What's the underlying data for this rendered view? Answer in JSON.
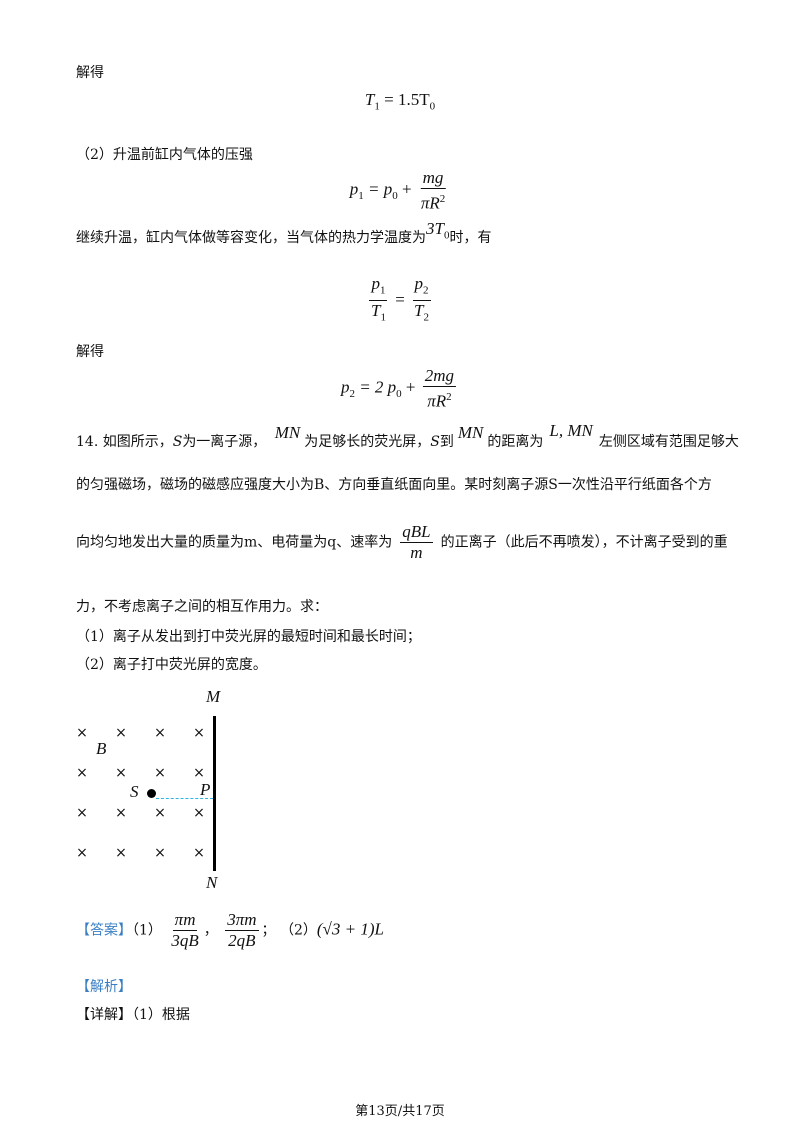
{
  "solve1": "解得",
  "eq_T1": {
    "lhs": "T",
    "lhs_sub": "1",
    "rhs": "= 1.5T",
    "rhs_sub": "0"
  },
  "part2_intro": "（2）升温前缸内气体的压强",
  "eq_p1": {
    "lhs": "p",
    "lhs_sub": "1",
    "mid": "= p",
    "mid_sub": "0",
    "plus": "+",
    "num": "mg",
    "den": "πR",
    "den_sup": "2"
  },
  "continue_text": {
    "before": "继续升温，缸内气体做等容变化，当气体的热力学温度为",
    "temp": "3T",
    "temp_sub": "0",
    "after": "时，有"
  },
  "eq_ratio": {
    "n1": "p",
    "n1_sub": "1",
    "d1": "T",
    "d1_sub": "1",
    "eq": "=",
    "n2": "p",
    "n2_sub": "2",
    "d2": "T",
    "d2_sub": "2"
  },
  "solve2": "解得",
  "eq_p2": {
    "lhs": "p",
    "lhs_sub": "2",
    "mid": "= 2 p",
    "mid_sub": "0",
    "plus": "+",
    "num": "2mg",
    "den": "πR",
    "den_sup": "2"
  },
  "question": {
    "line1": {
      "a": "14. 如图所示，",
      "S": "S",
      "b": "为一离子源，",
      "MN1": "MN",
      "c": "为足够长的荧光屏，",
      "S2": "S",
      "d": "到",
      "MN2": "MN",
      "e": "的距离为",
      "LMN": "L, MN",
      "f": "左侧区域有范围足够大"
    },
    "line2": "的匀强磁场，磁场的磁感应强度大小为B、方向垂直纸面向里。某时刻离子源S一次性沿平行纸面各个方",
    "line3": {
      "a": "向均匀地发出大量的质量为m、电荷量为q、速率为",
      "num": "qBL",
      "den": "m",
      "b": "的正离子（此后不再喷发），不计离子受到的重"
    },
    "line4": "力，不考虑离子之间的相互作用力。求：",
    "sub1": "（1）离子从发出到打中荧光屏的最短时间和最长时间；",
    "sub2": "（2）离子打中荧光屏的宽度。"
  },
  "figure": {
    "M": "M",
    "N": "N",
    "B": "B",
    "S": "S",
    "P": "P",
    "field_symbol": "×",
    "dashed_color": "#2bb5e0"
  },
  "answer": {
    "tag": "【答案】",
    "p1": "（1）",
    "f1_num": "πm",
    "f1_den": "3qB",
    "sep1": "，",
    "f2_num": "3πm",
    "f2_den": "2qB",
    "sep2": "；",
    "p2": "（2）",
    "expr": "(√3 + 1)L"
  },
  "analysis_tag": "【解析】",
  "detail": {
    "tag": "【详解】",
    "text": "（1）根据"
  },
  "footer": "第13页/共17页",
  "colors": {
    "tag_blue": "#3a7fc4"
  }
}
